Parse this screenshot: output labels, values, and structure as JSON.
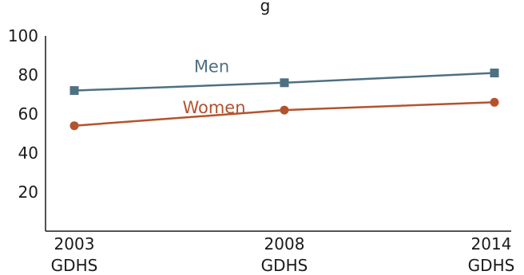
{
  "chart_data": {
    "type": "line",
    "title": "",
    "xlabel": "",
    "ylabel": "",
    "ylim": [
      0,
      100
    ],
    "yticks": [
      20,
      40,
      60,
      80,
      100
    ],
    "categories": [
      {
        "year": "2003",
        "survey": "GDHS"
      },
      {
        "year": "2008",
        "survey": "GDHS"
      },
      {
        "year": "2014",
        "survey": "GDHS"
      }
    ],
    "series": [
      {
        "name": "Men",
        "values": [
          72,
          76,
          81
        ],
        "color": "#4e7083",
        "marker": "square"
      },
      {
        "name": "Women",
        "values": [
          54,
          62,
          66
        ],
        "color": "#b5522e",
        "marker": "circle"
      }
    ],
    "grid": false,
    "legend": "inline labels above lines"
  }
}
